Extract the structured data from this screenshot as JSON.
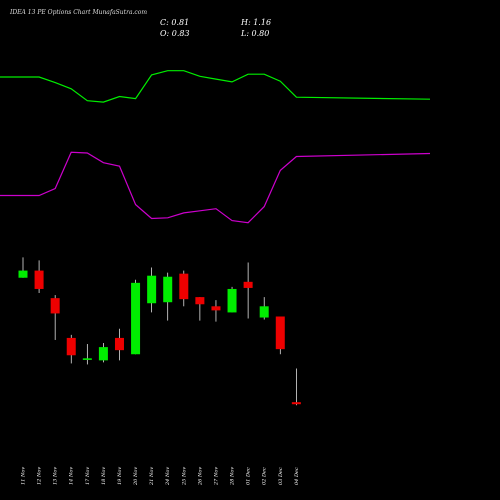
{
  "header": {
    "title": "IDEA 13 PE Options  Chart MunafaSutra.com",
    "close": "C: 0.81",
    "high": "H: 1.16",
    "open": "O: 0.83",
    "low": "L: 0.80"
  },
  "colors": {
    "background": "#000000",
    "upper_band": "#00ee00",
    "lower_band": "#cc00cc",
    "up_candle": "#00ee00",
    "down_candle": "#ee0000",
    "wick": "#ffffff"
  },
  "chart_data": {
    "type": "candlestick",
    "title": "IDEA 13 PE Options  Chart MunafaSutra.com",
    "x": [
      "11 Nov",
      "12 Nov",
      "13 Nov",
      "14 Nov",
      "17 Nov",
      "18 Nov",
      "19 Nov",
      "20 Nov",
      "21 Nov",
      "24 Nov",
      "25 Nov",
      "26 Nov",
      "27 Nov",
      "28 Nov",
      "01 Dec",
      "02 Dec",
      "03 Dec",
      "04 Dec"
    ],
    "candles": [
      {
        "open": 2.05,
        "close": 2.12,
        "high": 2.25,
        "low": 2.05
      },
      {
        "open": 2.12,
        "close": 1.94,
        "high": 2.22,
        "low": 1.9
      },
      {
        "open": 1.85,
        "close": 1.7,
        "high": 1.88,
        "low": 1.44
      },
      {
        "open": 1.46,
        "close": 1.29,
        "high": 1.49,
        "low": 1.21
      },
      {
        "open": 1.25,
        "close": 1.26,
        "high": 1.4,
        "low": 1.2
      },
      {
        "open": 1.24,
        "close": 1.37,
        "high": 1.41,
        "low": 1.22
      },
      {
        "open": 1.46,
        "close": 1.34,
        "high": 1.55,
        "low": 1.24
      },
      {
        "open": 1.3,
        "close": 2.0,
        "high": 2.03,
        "low": 1.3
      },
      {
        "open": 1.8,
        "close": 2.07,
        "high": 2.15,
        "low": 1.71
      },
      {
        "open": 1.81,
        "close": 2.06,
        "high": 2.1,
        "low": 1.63
      },
      {
        "open": 2.09,
        "close": 1.84,
        "high": 2.12,
        "low": 1.77
      },
      {
        "open": 1.86,
        "close": 1.79,
        "high": 1.86,
        "low": 1.63
      },
      {
        "open": 1.77,
        "close": 1.73,
        "high": 1.83,
        "low": 1.62
      },
      {
        "open": 1.71,
        "close": 1.94,
        "high": 1.96,
        "low": 1.71
      },
      {
        "open": 2.01,
        "close": 1.95,
        "high": 2.2,
        "low": 1.65
      },
      {
        "open": 1.66,
        "close": 1.77,
        "high": 1.86,
        "low": 1.64
      },
      {
        "open": 1.67,
        "close": 1.35,
        "high": 1.67,
        "low": 1.3
      },
      {
        "open": 0.83,
        "close": 0.81,
        "high": 1.16,
        "low": 0.8
      }
    ],
    "series": [
      {
        "values": [
          2.72,
          2.72,
          2.64,
          2.55,
          2.38,
          2.36,
          2.44,
          2.41,
          2.75,
          2.81,
          2.81,
          2.73,
          2.69,
          2.65,
          2.76,
          2.76,
          2.66,
          2.43
        ]
      },
      {
        "values": [
          1.02,
          1.02,
          1.12,
          1.64,
          1.63,
          1.49,
          1.44,
          0.89,
          0.69,
          0.7,
          0.77,
          0.8,
          0.83,
          0.66,
          0.63,
          0.86,
          1.38,
          1.58
        ]
      }
    ],
    "grid": false,
    "legend": "none"
  }
}
